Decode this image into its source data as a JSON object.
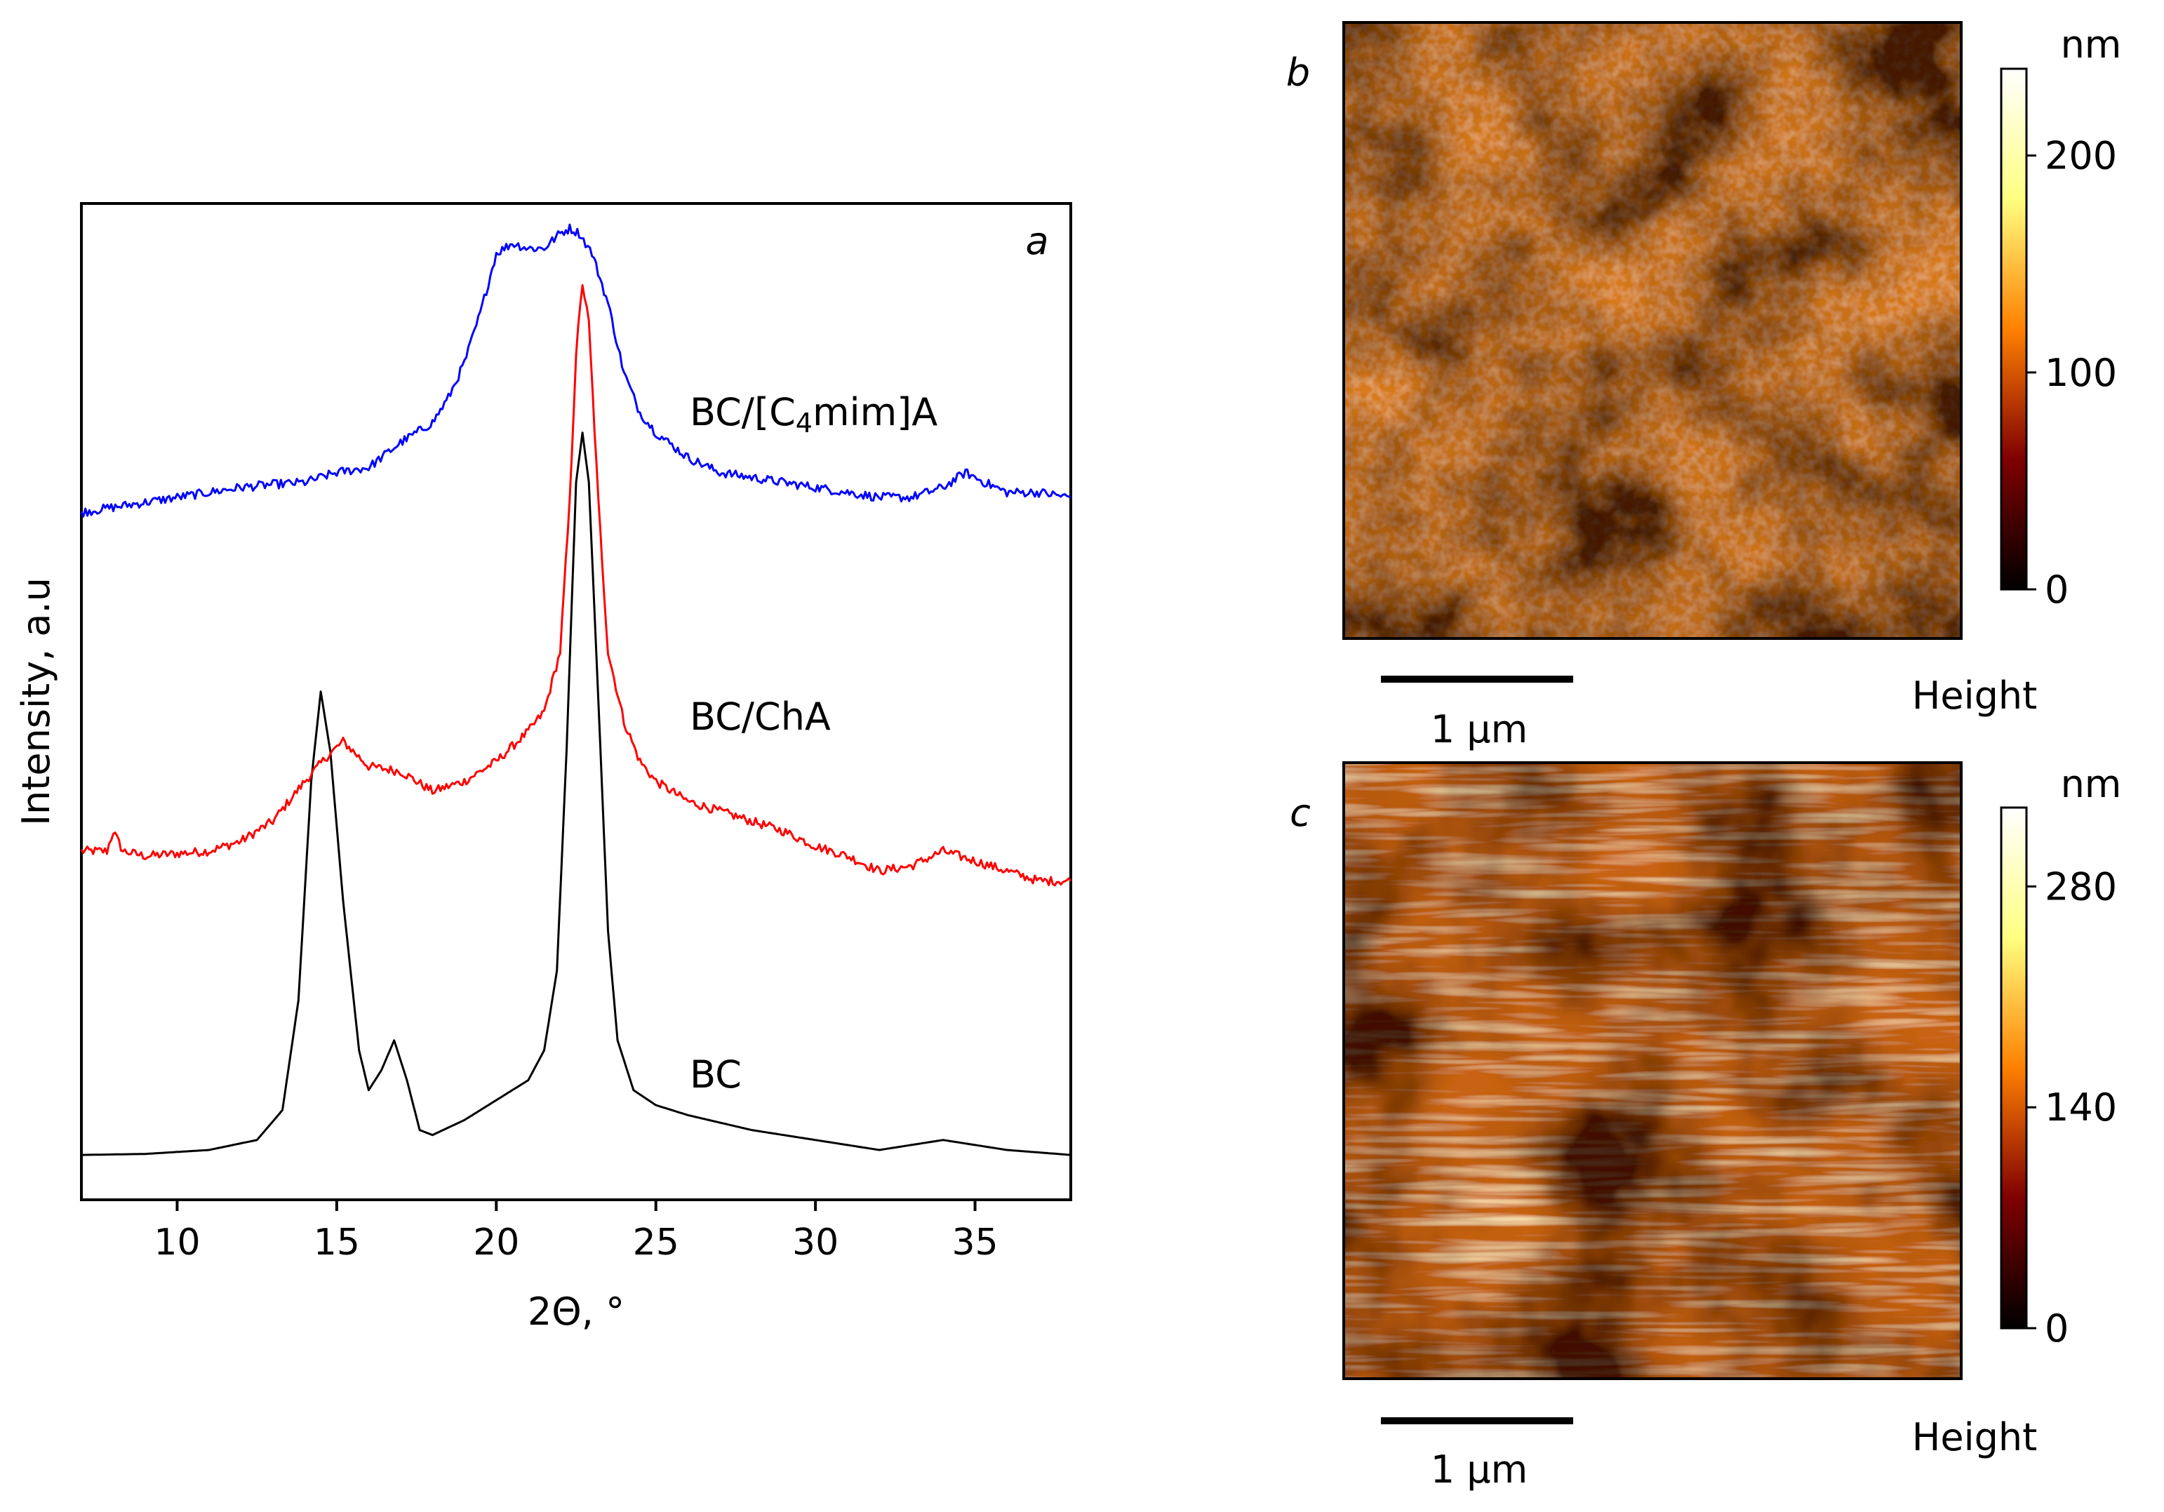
{
  "chart_data": [
    {
      "type": "line",
      "panel_letter": "a",
      "xlabel": "2Θ, °",
      "ylabel": "Intensity, a.u",
      "xlim": [
        7,
        38
      ],
      "ylim": [
        0,
        100
      ],
      "xticks": [
        10,
        15,
        20,
        25,
        30,
        35
      ],
      "y_tick_labels_shown": false,
      "grid": false,
      "legend": "none (direct labels)",
      "series": [
        {
          "name": "BC",
          "label_parts": [
            "BC"
          ],
          "color": "#000000",
          "points": [
            [
              7,
              4.5
            ],
            [
              9,
              4.6
            ],
            [
              11,
              5
            ],
            [
              12.5,
              6
            ],
            [
              13.3,
              9
            ],
            [
              13.8,
              20
            ],
            [
              14.2,
              42
            ],
            [
              14.5,
              51
            ],
            [
              14.8,
              45
            ],
            [
              15.2,
              30
            ],
            [
              15.7,
              15
            ],
            [
              16,
              11
            ],
            [
              16.4,
              13
            ],
            [
              16.8,
              16
            ],
            [
              17.2,
              12
            ],
            [
              17.6,
              7
            ],
            [
              18,
              6.5
            ],
            [
              19,
              8
            ],
            [
              20,
              10
            ],
            [
              21,
              12
            ],
            [
              21.5,
              15
            ],
            [
              21.9,
              23
            ],
            [
              22.2,
              45
            ],
            [
              22.5,
              72
            ],
            [
              22.7,
              77
            ],
            [
              22.9,
              72
            ],
            [
              23.2,
              50
            ],
            [
              23.5,
              27
            ],
            [
              23.8,
              16
            ],
            [
              24.3,
              11
            ],
            [
              25,
              9.5
            ],
            [
              26,
              8.5
            ],
            [
              28,
              7
            ],
            [
              30,
              6
            ],
            [
              32,
              5
            ],
            [
              33,
              5.5
            ],
            [
              34,
              6
            ],
            [
              35,
              5.5
            ],
            [
              36,
              5
            ],
            [
              38,
              4.5
            ]
          ]
        },
        {
          "name": "BC/ChA",
          "label_parts": [
            "BC/ChA"
          ],
          "color": "#ff0000",
          "points": [
            [
              7,
              35
            ],
            [
              7.8,
              35
            ],
            [
              8,
              37
            ],
            [
              8.3,
              35
            ],
            [
              9,
              34.5
            ],
            [
              11,
              35
            ],
            [
              12,
              36
            ],
            [
              13,
              38
            ],
            [
              14,
              42
            ],
            [
              14.7,
              44.5
            ],
            [
              15.2,
              46
            ],
            [
              16,
              43.5
            ],
            [
              17,
              43
            ],
            [
              18,
              41
            ],
            [
              19,
              42
            ],
            [
              20,
              44
            ],
            [
              21,
              47
            ],
            [
              21.5,
              49
            ],
            [
              22,
              55
            ],
            [
              22.3,
              70
            ],
            [
              22.5,
              85
            ],
            [
              22.7,
              92
            ],
            [
              22.9,
              88
            ],
            [
              23.2,
              70
            ],
            [
              23.5,
              55
            ],
            [
              24,
              48
            ],
            [
              24.5,
              44
            ],
            [
              25,
              42
            ],
            [
              26,
              40
            ],
            [
              27,
              39
            ],
            [
              28,
              38
            ],
            [
              29,
              37
            ],
            [
              30,
              35.5
            ],
            [
              31,
              34.5
            ],
            [
              32,
              33
            ],
            [
              33,
              33.5
            ],
            [
              34,
              35
            ],
            [
              35,
              34
            ],
            [
              36,
              33
            ],
            [
              37,
              32
            ],
            [
              38,
              32
            ]
          ]
        },
        {
          "name": "BC/[C4mim]A",
          "label_parts": [
            "BC/[C",
            "4",
            "mim]A"
          ],
          "color": "#0000ff",
          "points": [
            [
              7,
              69
            ],
            [
              8,
              69.5
            ],
            [
              9,
              70
            ],
            [
              10,
              70.5
            ],
            [
              11,
              71
            ],
            [
              12,
              71.5
            ],
            [
              13,
              71.8
            ],
            [
              14,
              72
            ],
            [
              15,
              73
            ],
            [
              16,
              73.5
            ],
            [
              17,
              76
            ],
            [
              17.5,
              77
            ],
            [
              18,
              78
            ],
            [
              18.5,
              80.5
            ],
            [
              19,
              84
            ],
            [
              19.5,
              89
            ],
            [
              20,
              95
            ],
            [
              20.5,
              96
            ],
            [
              21,
              95.5
            ],
            [
              21.5,
              95.5
            ],
            [
              22,
              97
            ],
            [
              22.3,
              97.5
            ],
            [
              22.6,
              97
            ],
            [
              23,
              95
            ],
            [
              23.5,
              90
            ],
            [
              24,
              83
            ],
            [
              24.5,
              79
            ],
            [
              25,
              77
            ],
            [
              26,
              74.5
            ],
            [
              27,
              73
            ],
            [
              28,
              72.5
            ],
            [
              29,
              72
            ],
            [
              30,
              71.5
            ],
            [
              31,
              71
            ],
            [
              32,
              70.5
            ],
            [
              33,
              70.5
            ],
            [
              34,
              71.5
            ],
            [
              34.7,
              73
            ],
            [
              35.3,
              72
            ],
            [
              36,
              71
            ],
            [
              37,
              71
            ],
            [
              38,
              70.5
            ]
          ]
        }
      ]
    },
    {
      "type": "heatmap",
      "panel_letter": "b",
      "description_label": "Height",
      "colorbar": {
        "unit": "nm",
        "range": [
          0,
          240
        ],
        "ticks": [
          0,
          100,
          200
        ],
        "colormap": "afmhot"
      },
      "scale_bar_label": "1 μm"
    },
    {
      "type": "heatmap",
      "panel_letter": "c",
      "description_label": "Height",
      "colorbar": {
        "unit": "nm",
        "range": [
          0,
          330
        ],
        "ticks": [
          0,
          140,
          280
        ],
        "colormap": "afmhot"
      },
      "scale_bar_label": "1 μm"
    }
  ]
}
